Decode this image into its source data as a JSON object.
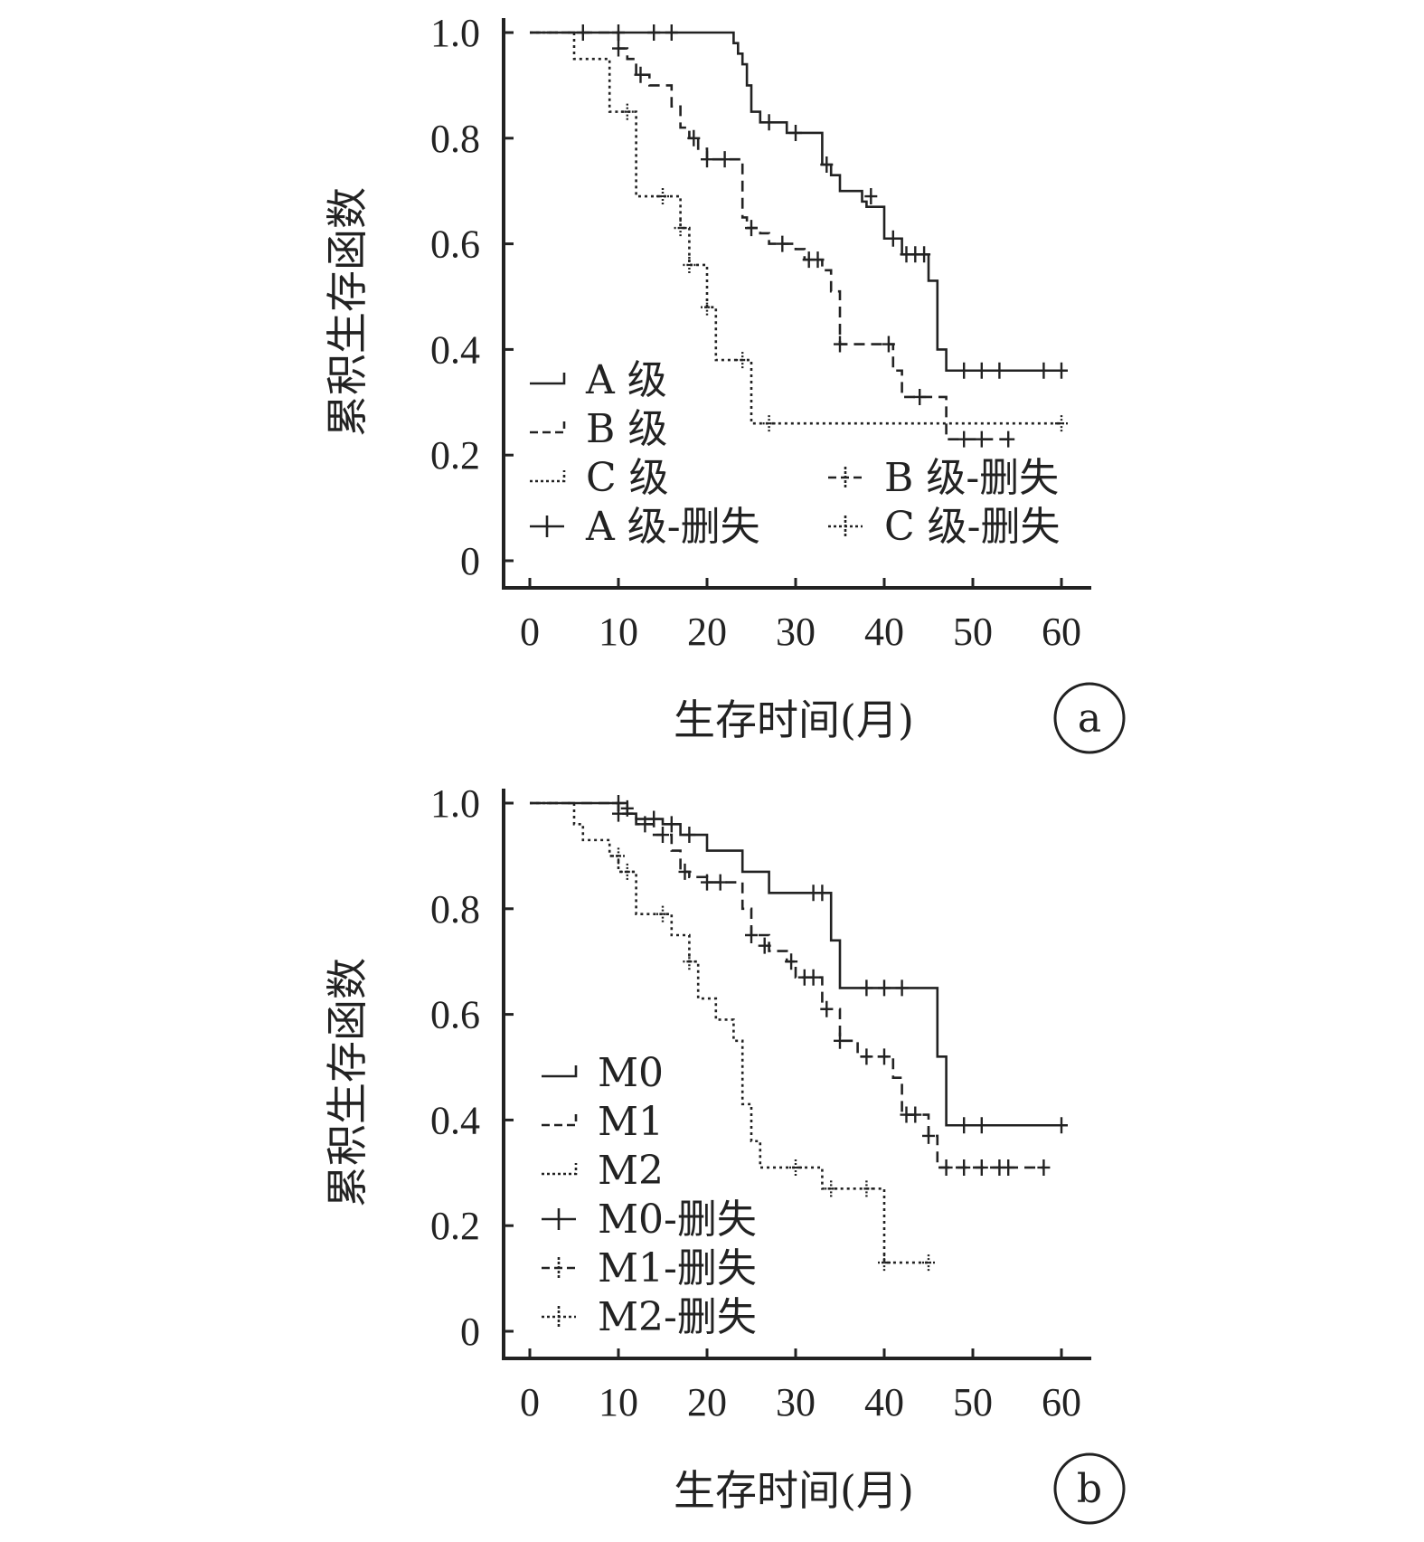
{
  "chart_data": [
    {
      "panel_label": "a",
      "type": "line",
      "subtype": "kaplan-meier step",
      "xlabel": "生存时间(月)",
      "ylabel": "累积生存函数",
      "xlim": [
        0,
        60
      ],
      "ylim": [
        0,
        1.0
      ],
      "x_ticks": [
        "0",
        "10",
        "20",
        "30",
        "40",
        "50",
        "60"
      ],
      "y_ticks": [
        "0",
        "0.2",
        "0.4",
        "0.6",
        "0.8",
        "1.0"
      ],
      "grid": false,
      "legend": {
        "entries": [
          {
            "label": "A 级",
            "style": "solid"
          },
          {
            "label": "B 级",
            "style": "dashed"
          },
          {
            "label": "C 级",
            "style": "dotted"
          },
          {
            "label": "A 级-删失",
            "style": "solid-censor"
          },
          {
            "label": "B 级-删失",
            "style": "dashed-censor"
          },
          {
            "label": "C 级-删失",
            "style": "dotted-censor"
          }
        ]
      },
      "series": [
        {
          "name": "A 级",
          "style": "solid",
          "steps": [
            [
              0,
              1.0
            ],
            [
              23,
              0.98
            ],
            [
              23.5,
              0.96
            ],
            [
              24,
              0.94
            ],
            [
              24.5,
              0.9
            ],
            [
              25,
              0.85
            ],
            [
              26,
              0.83
            ],
            [
              29,
              0.81
            ],
            [
              33,
              0.75
            ],
            [
              34,
              0.73
            ],
            [
              35,
              0.7
            ],
            [
              37.5,
              0.68
            ],
            [
              38,
              0.67
            ],
            [
              40,
              0.61
            ],
            [
              42,
              0.58
            ],
            [
              45,
              0.53
            ],
            [
              46,
              0.4
            ],
            [
              47,
              0.36
            ]
          ],
          "end_x": 60,
          "censored": [
            [
              10,
              1.0
            ],
            [
              14,
              1.0
            ],
            [
              16,
              1.0
            ],
            [
              27,
              0.83
            ],
            [
              30,
              0.81
            ],
            [
              33.5,
              0.75
            ],
            [
              38.5,
              0.69
            ],
            [
              41,
              0.61
            ],
            [
              42.5,
              0.58
            ],
            [
              43.5,
              0.58
            ],
            [
              44.5,
              0.58
            ],
            [
              49,
              0.36
            ],
            [
              51,
              0.36
            ],
            [
              53,
              0.36
            ],
            [
              58,
              0.36
            ],
            [
              60,
              0.36
            ]
          ]
        },
        {
          "name": "B 级",
          "style": "dashed",
          "steps": [
            [
              0,
              1.0
            ],
            [
              10,
              0.97
            ],
            [
              11,
              0.95
            ],
            [
              12,
              0.92
            ],
            [
              13.5,
              0.9
            ],
            [
              16,
              0.86
            ],
            [
              17,
              0.82
            ],
            [
              18,
              0.8
            ],
            [
              19,
              0.78
            ],
            [
              20,
              0.76
            ],
            [
              24,
              0.65
            ],
            [
              24.5,
              0.63
            ],
            [
              26,
              0.62
            ],
            [
              27,
              0.6
            ],
            [
              30,
              0.59
            ],
            [
              31,
              0.57
            ],
            [
              33,
              0.55
            ],
            [
              34,
              0.51
            ],
            [
              35,
              0.41
            ],
            [
              41,
              0.36
            ],
            [
              42,
              0.31
            ],
            [
              47,
              0.23
            ]
          ],
          "end_x": 54,
          "censored": [
            [
              6,
              1.0
            ],
            [
              10,
              0.97
            ],
            [
              12.5,
              0.92
            ],
            [
              18.5,
              0.8
            ],
            [
              20,
              0.76
            ],
            [
              22,
              0.76
            ],
            [
              25,
              0.63
            ],
            [
              28.5,
              0.6
            ],
            [
              31.5,
              0.57
            ],
            [
              32.5,
              0.57
            ],
            [
              35,
              0.41
            ],
            [
              40.5,
              0.41
            ],
            [
              44,
              0.31
            ],
            [
              49,
              0.23
            ],
            [
              51,
              0.23
            ],
            [
              54,
              0.23
            ]
          ]
        },
        {
          "name": "C 级",
          "style": "dotted",
          "steps": [
            [
              0,
              1.0
            ],
            [
              5,
              0.95
            ],
            [
              9,
              0.85
            ],
            [
              12,
              0.69
            ],
            [
              17,
              0.63
            ],
            [
              18,
              0.56
            ],
            [
              20,
              0.48
            ],
            [
              21,
              0.38
            ],
            [
              25,
              0.26
            ]
          ],
          "end_x": 60,
          "censored": [
            [
              11,
              0.85
            ],
            [
              15,
              0.69
            ],
            [
              17,
              0.63
            ],
            [
              18,
              0.56
            ],
            [
              20,
              0.48
            ],
            [
              24,
              0.38
            ],
            [
              27,
              0.26
            ],
            [
              60,
              0.26
            ]
          ]
        }
      ]
    },
    {
      "panel_label": "b",
      "type": "line",
      "subtype": "kaplan-meier step",
      "xlabel": "生存时间(月)",
      "ylabel": "累积生存函数",
      "xlim": [
        0,
        60
      ],
      "ylim": [
        0,
        1.0
      ],
      "x_ticks": [
        "0",
        "10",
        "20",
        "30",
        "40",
        "50",
        "60"
      ],
      "y_ticks": [
        "0",
        "0.2",
        "0.4",
        "0.6",
        "0.8",
        "1.0"
      ],
      "grid": false,
      "legend": {
        "entries": [
          {
            "label": "M0",
            "style": "solid"
          },
          {
            "label": "M1",
            "style": "dashed"
          },
          {
            "label": "M2",
            "style": "dotted"
          },
          {
            "label": "M0-删失",
            "style": "solid-censor"
          },
          {
            "label": "M1-删失",
            "style": "dashed-censor"
          },
          {
            "label": "M2-删失",
            "style": "dotted-censor"
          }
        ]
      },
      "series": [
        {
          "name": "M0",
          "style": "solid",
          "steps": [
            [
              0,
              1.0
            ],
            [
              11,
              0.98
            ],
            [
              12,
              0.97
            ],
            [
              15,
              0.96
            ],
            [
              17,
              0.94
            ],
            [
              20,
              0.91
            ],
            [
              24,
              0.87
            ],
            [
              27,
              0.83
            ],
            [
              34,
              0.74
            ],
            [
              35,
              0.65
            ],
            [
              46,
              0.52
            ],
            [
              47,
              0.39
            ]
          ],
          "end_x": 60,
          "censored": [
            [
              10,
              1.0
            ],
            [
              11,
              0.99
            ],
            [
              14,
              0.97
            ],
            [
              16,
              0.96
            ],
            [
              18,
              0.94
            ],
            [
              32,
              0.83
            ],
            [
              33,
              0.83
            ],
            [
              38,
              0.65
            ],
            [
              40,
              0.65
            ],
            [
              42,
              0.65
            ],
            [
              49,
              0.39
            ],
            [
              51,
              0.39
            ],
            [
              60,
              0.39
            ]
          ]
        },
        {
          "name": "M1",
          "style": "dashed",
          "steps": [
            [
              0,
              1.0
            ],
            [
              10,
              0.98
            ],
            [
              12,
              0.96
            ],
            [
              14,
              0.94
            ],
            [
              16,
              0.91
            ],
            [
              17,
              0.87
            ],
            [
              18,
              0.86
            ],
            [
              20,
              0.85
            ],
            [
              24,
              0.8
            ],
            [
              25,
              0.75
            ],
            [
              27,
              0.72
            ],
            [
              29,
              0.7
            ],
            [
              30,
              0.67
            ],
            [
              33,
              0.61
            ],
            [
              35,
              0.55
            ],
            [
              37,
              0.52
            ],
            [
              41,
              0.48
            ],
            [
              42,
              0.41
            ],
            [
              45,
              0.37
            ],
            [
              46,
              0.31
            ]
          ],
          "end_x": 58,
          "censored": [
            [
              10,
              0.98
            ],
            [
              13,
              0.96
            ],
            [
              15,
              0.94
            ],
            [
              17.5,
              0.87
            ],
            [
              20,
              0.85
            ],
            [
              21.5,
              0.85
            ],
            [
              25,
              0.75
            ],
            [
              26.5,
              0.73
            ],
            [
              29.5,
              0.7
            ],
            [
              31,
              0.67
            ],
            [
              32,
              0.67
            ],
            [
              33.5,
              0.61
            ],
            [
              35,
              0.55
            ],
            [
              38,
              0.52
            ],
            [
              40,
              0.52
            ],
            [
              42.5,
              0.41
            ],
            [
              43.5,
              0.41
            ],
            [
              45,
              0.37
            ],
            [
              47,
              0.31
            ],
            [
              49,
              0.31
            ],
            [
              51,
              0.31
            ],
            [
              53,
              0.31
            ],
            [
              54,
              0.31
            ],
            [
              58,
              0.31
            ]
          ]
        },
        {
          "name": "M2",
          "style": "dotted",
          "steps": [
            [
              0,
              1.0
            ],
            [
              5,
              0.96
            ],
            [
              6,
              0.93
            ],
            [
              9,
              0.9
            ],
            [
              10,
              0.87
            ],
            [
              12,
              0.79
            ],
            [
              16,
              0.75
            ],
            [
              18,
              0.7
            ],
            [
              19,
              0.63
            ],
            [
              21,
              0.59
            ],
            [
              23,
              0.55
            ],
            [
              24,
              0.43
            ],
            [
              25,
              0.36
            ],
            [
              26,
              0.31
            ],
            [
              33,
              0.27
            ],
            [
              40,
              0.13
            ]
          ],
          "end_x": 45,
          "censored": [
            [
              10,
              0.9
            ],
            [
              11,
              0.87
            ],
            [
              15,
              0.79
            ],
            [
              18,
              0.7
            ],
            [
              30,
              0.31
            ],
            [
              34,
              0.27
            ],
            [
              38,
              0.27
            ],
            [
              40,
              0.13
            ],
            [
              45,
              0.13
            ]
          ]
        }
      ]
    }
  ]
}
